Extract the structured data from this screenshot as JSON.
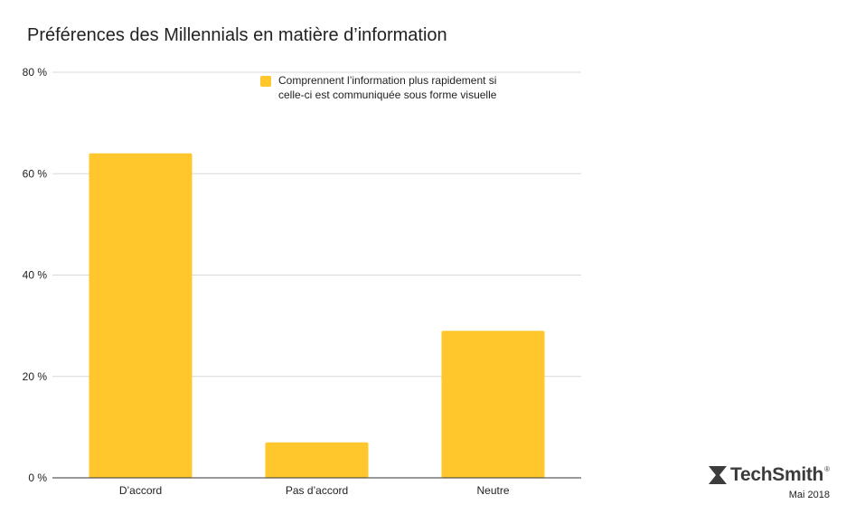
{
  "chart_data": {
    "type": "bar",
    "title": "Préférences des Millennials en matière d’information",
    "categories": [
      "D’accord",
      "Pas d’accord",
      "Neutre"
    ],
    "series": [
      {
        "name": "Comprennent l’information plus rapidement si celle-ci est communiquée sous forme visuelle",
        "values": [
          64,
          7,
          29
        ],
        "color": "#FFC72C"
      }
    ],
    "ylim": [
      0,
      80
    ],
    "y_ticks": [
      "0 %",
      "20 %",
      "40 %",
      "60 %",
      "80 %"
    ],
    "y_tick_values": [
      0,
      20,
      40,
      60,
      80
    ],
    "grid": true,
    "legend_position": "top-center",
    "xlabel": "",
    "ylabel": ""
  },
  "branding": {
    "name": "TechSmith",
    "registered": "®",
    "date": "Mai 2018",
    "logo_icon": "techsmith-logo-icon"
  },
  "colors": {
    "bar": "#FFC72C",
    "grid": "#d9d9d9",
    "axis": "#333333",
    "text": "#222222"
  }
}
